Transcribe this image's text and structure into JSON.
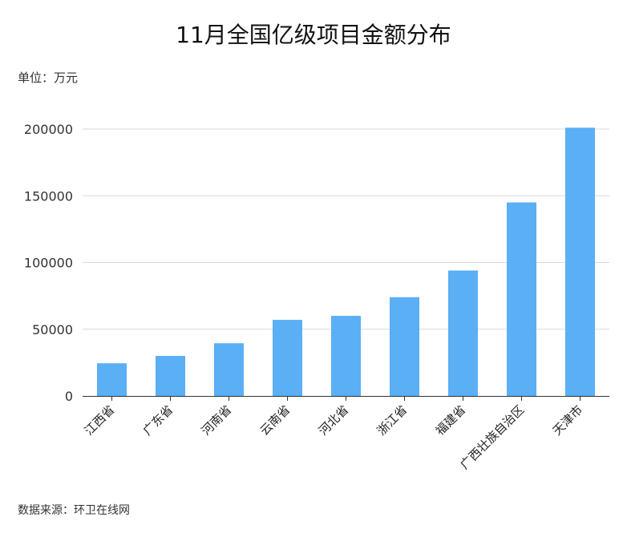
{
  "title": "11月全国亿级项目金额分布",
  "unit": "单位：万元",
  "source": "数据来源：环卫在线网",
  "colors": {
    "bar": "#5aaff5",
    "grid": "#d9d9d9",
    "axis": "#333333"
  },
  "chart_data": {
    "type": "bar",
    "title": "11月全国亿级项目金额分布",
    "ylabel": "",
    "xlabel": "",
    "ylim": [
      0,
      200000
    ],
    "yticks": [
      0,
      50000,
      100000,
      150000,
      200000
    ],
    "grid": true,
    "categories": [
      "江西省",
      "广东省",
      "河南省",
      "云南省",
      "河北省",
      "浙江省",
      "福建省",
      "广西壮族自治区",
      "天津市"
    ],
    "values": [
      24500,
      30000,
      39500,
      57000,
      60000,
      74000,
      94000,
      145000,
      201000
    ]
  }
}
